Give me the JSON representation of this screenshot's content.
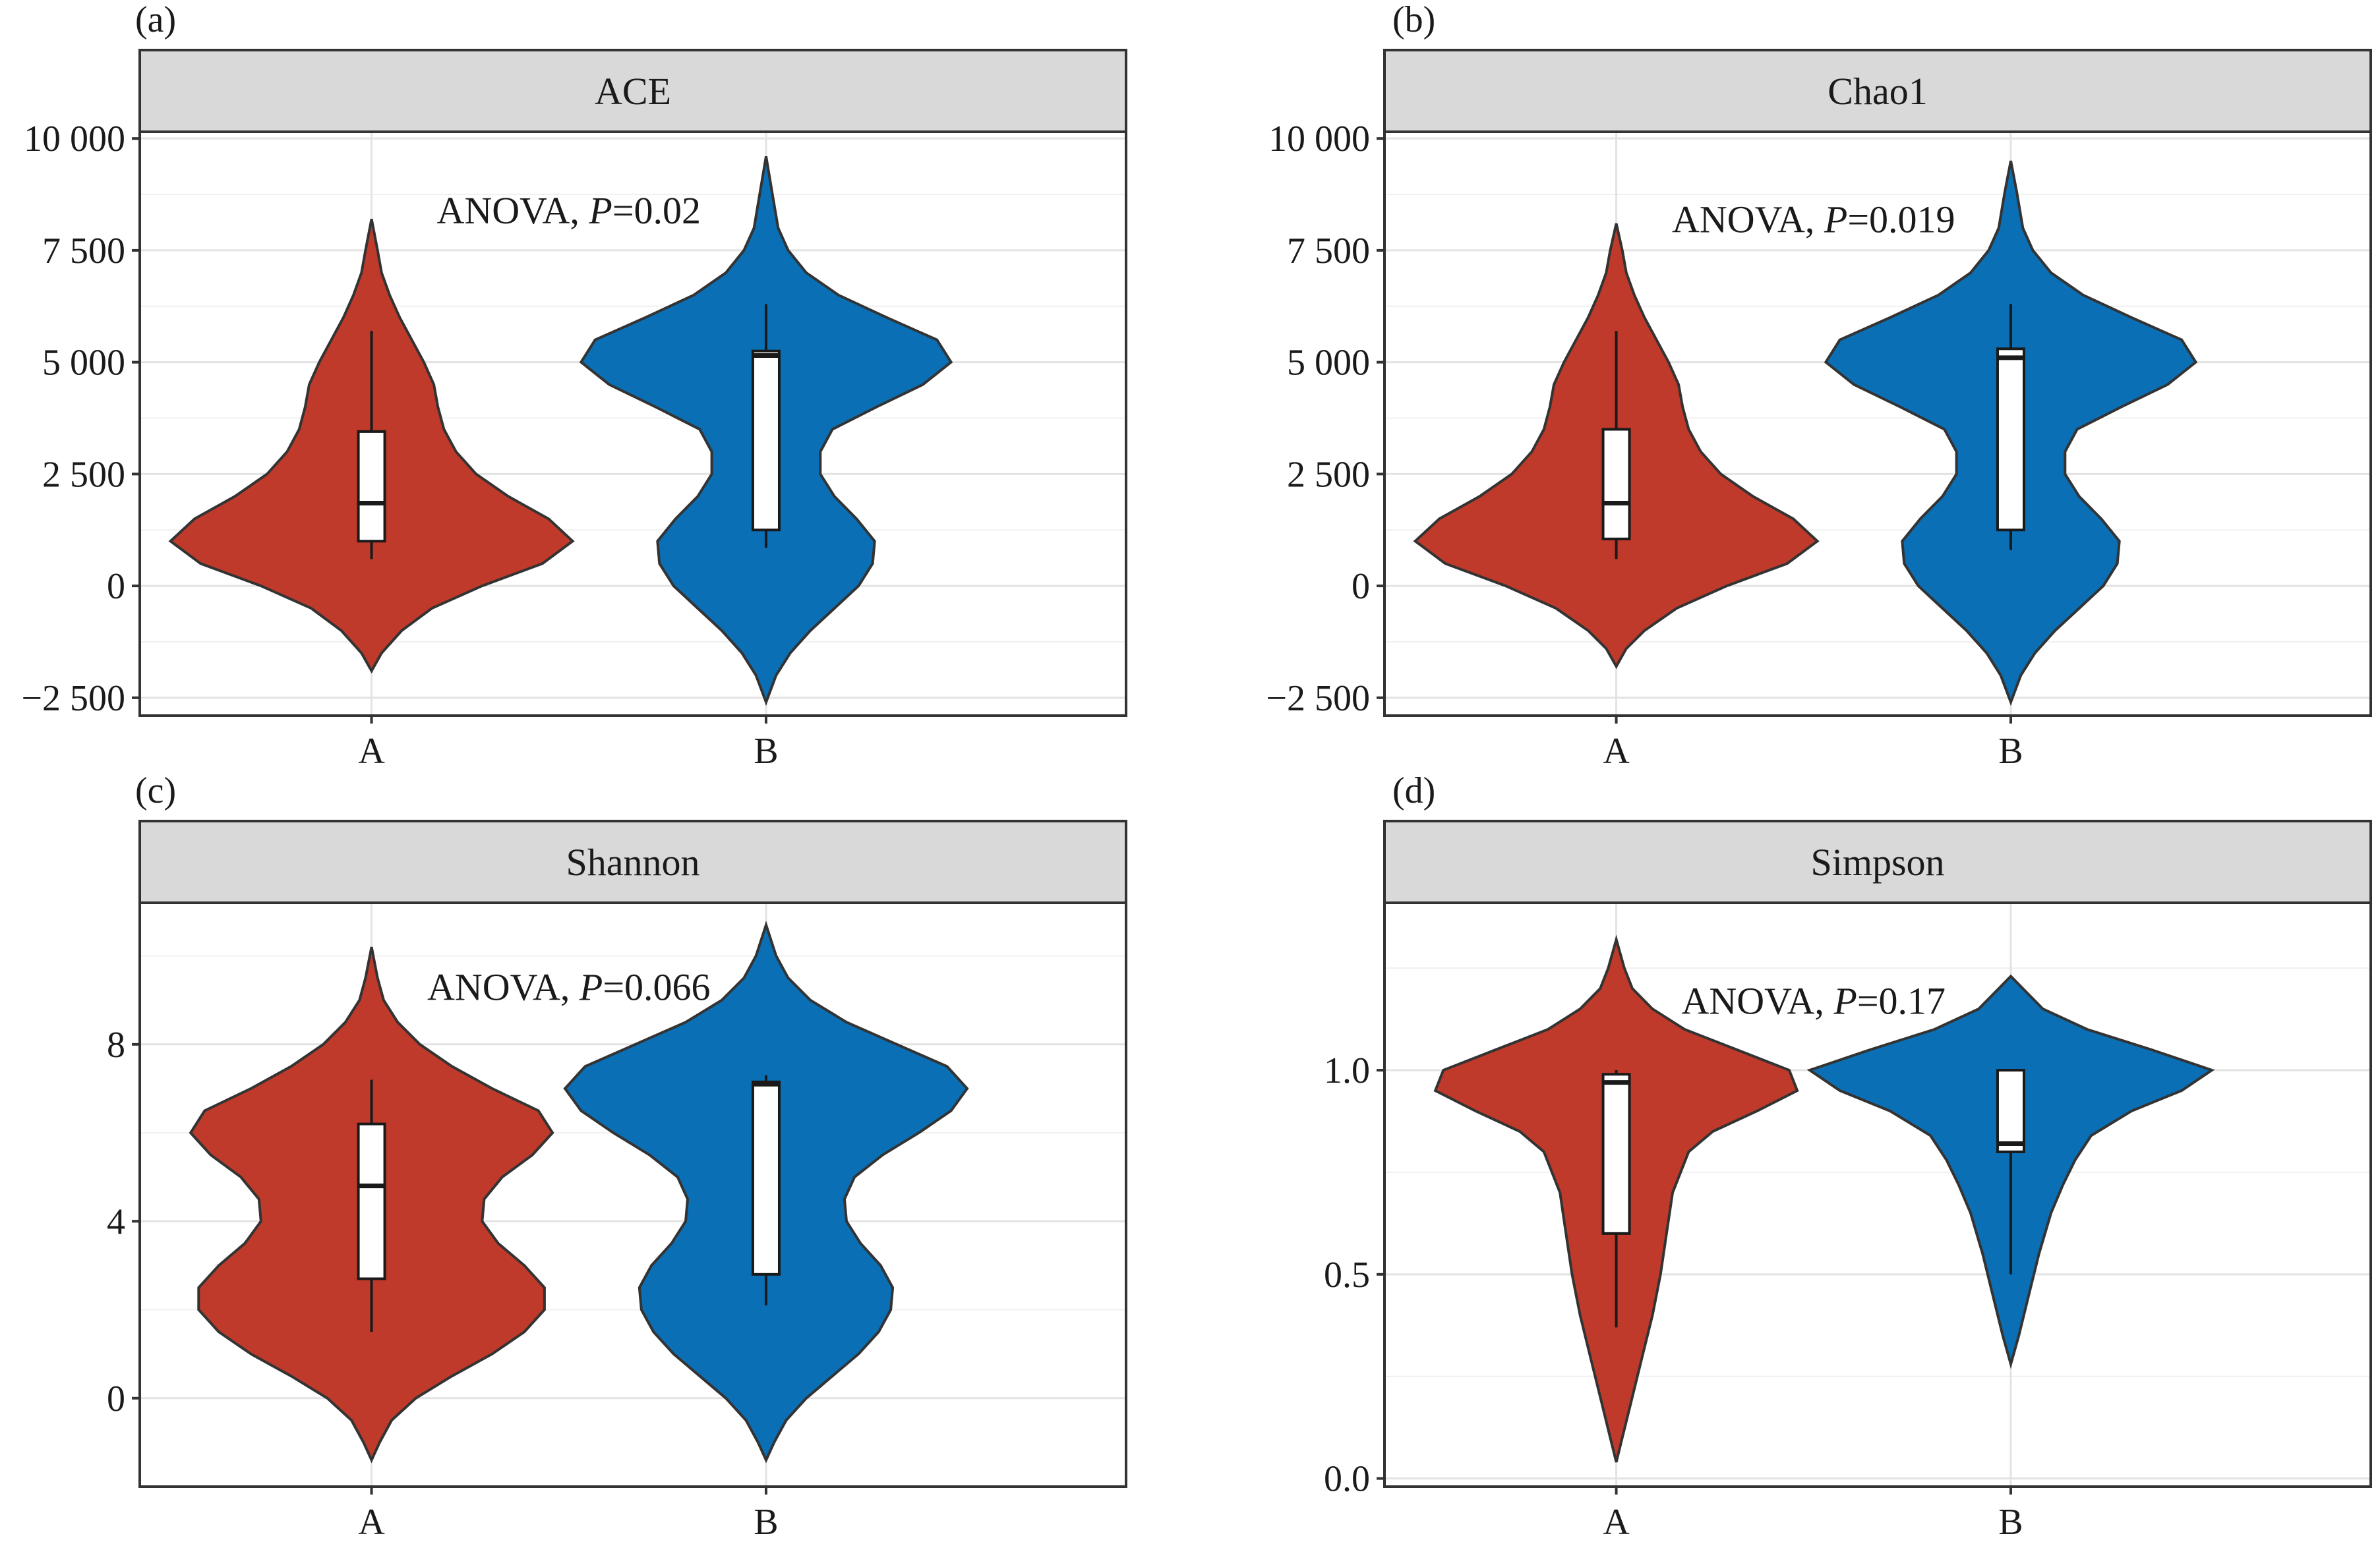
{
  "chart_data": [
    {
      "type": "violin",
      "panel_label": "(a)",
      "title": "ACE",
      "annotation": {
        "prefix": "ANOVA, ",
        "italic": "P",
        "suffix": "=0.02",
        "x": 1.5,
        "y": 8400
      },
      "categories": [
        "A",
        "B"
      ],
      "ylim": [
        -2900,
        10150
      ],
      "yticks": [
        -2500,
        0,
        2500,
        5000,
        7500,
        10000
      ],
      "ytick_labels": [
        "−2 500",
        "0",
        "2 500",
        "5 000",
        "7 500",
        "10 000"
      ],
      "grid": true,
      "colors": [
        "#bf3a2a",
        "#0a6fb5"
      ],
      "violins": [
        {
          "category": "A",
          "color": "#bf3a2a",
          "profile": [
            [
              -1900,
              0.0
            ],
            [
              -1500,
              0.05
            ],
            [
              -1000,
              0.15
            ],
            [
              -500,
              0.3
            ],
            [
              0,
              0.55
            ],
            [
              500,
              0.85
            ],
            [
              1000,
              1.0
            ],
            [
              1500,
              0.88
            ],
            [
              2000,
              0.68
            ],
            [
              2500,
              0.52
            ],
            [
              3000,
              0.42
            ],
            [
              3500,
              0.36
            ],
            [
              4000,
              0.33
            ],
            [
              4500,
              0.31
            ],
            [
              5000,
              0.26
            ],
            [
              5500,
              0.2
            ],
            [
              6000,
              0.14
            ],
            [
              6500,
              0.09
            ],
            [
              7000,
              0.05
            ],
            [
              7500,
              0.03
            ],
            [
              8200,
              0.0
            ]
          ],
          "box": {
            "q1": 1000,
            "median": 1850,
            "q3": 3450,
            "whisker_low": 600,
            "whisker_high": 5700
          }
        },
        {
          "category": "B",
          "color": "#0a6fb5",
          "profile": [
            [
              -2600,
              0.0
            ],
            [
              -2000,
              0.05
            ],
            [
              -1500,
              0.12
            ],
            [
              -1000,
              0.22
            ],
            [
              -500,
              0.34
            ],
            [
              0,
              0.46
            ],
            [
              500,
              0.53
            ],
            [
              1000,
              0.54
            ],
            [
              1500,
              0.45
            ],
            [
              2000,
              0.34
            ],
            [
              2500,
              0.27
            ],
            [
              3000,
              0.27
            ],
            [
              3500,
              0.33
            ],
            [
              4000,
              0.55
            ],
            [
              4500,
              0.78
            ],
            [
              5000,
              0.92
            ],
            [
              5500,
              0.85
            ],
            [
              6000,
              0.6
            ],
            [
              6500,
              0.36
            ],
            [
              7000,
              0.2
            ],
            [
              7500,
              0.11
            ],
            [
              8000,
              0.06
            ],
            [
              8800,
              0.03
            ],
            [
              9600,
              0.0
            ]
          ],
          "box": {
            "q1": 1250,
            "median": 5150,
            "q3": 5250,
            "whisker_low": 850,
            "whisker_high": 6300
          }
        }
      ]
    },
    {
      "type": "violin",
      "panel_label": "(b)",
      "title": "Chao1",
      "annotation": {
        "prefix": "ANOVA, ",
        "italic": "P",
        "suffix": "=0.019",
        "x": 1.5,
        "y": 8200
      },
      "categories": [
        "A",
        "B"
      ],
      "ylim": [
        -2900,
        10150
      ],
      "yticks": [
        -2500,
        0,
        2500,
        5000,
        7500,
        10000
      ],
      "ytick_labels": [
        "−2 500",
        "0",
        "2 500",
        "5 000",
        "7 500",
        "10 000"
      ],
      "grid": true,
      "colors": [
        "#bf3a2a",
        "#0a6fb5"
      ],
      "violins": [
        {
          "category": "A",
          "color": "#bf3a2a",
          "profile": [
            [
              -1800,
              0.0
            ],
            [
              -1400,
              0.05
            ],
            [
              -1000,
              0.14
            ],
            [
              -500,
              0.3
            ],
            [
              0,
              0.55
            ],
            [
              500,
              0.85
            ],
            [
              1000,
              1.0
            ],
            [
              1500,
              0.88
            ],
            [
              2000,
              0.68
            ],
            [
              2500,
              0.52
            ],
            [
              3000,
              0.42
            ],
            [
              3500,
              0.36
            ],
            [
              4000,
              0.33
            ],
            [
              4500,
              0.31
            ],
            [
              5000,
              0.26
            ],
            [
              5500,
              0.2
            ],
            [
              6000,
              0.14
            ],
            [
              6500,
              0.09
            ],
            [
              7000,
              0.05
            ],
            [
              7500,
              0.03
            ],
            [
              8100,
              0.0
            ]
          ],
          "box": {
            "q1": 1050,
            "median": 1850,
            "q3": 3500,
            "whisker_low": 600,
            "whisker_high": 5700
          }
        },
        {
          "category": "B",
          "color": "#0a6fb5",
          "profile": [
            [
              -2600,
              0.0
            ],
            [
              -2000,
              0.05
            ],
            [
              -1500,
              0.12
            ],
            [
              -1000,
              0.22
            ],
            [
              -500,
              0.34
            ],
            [
              0,
              0.46
            ],
            [
              500,
              0.53
            ],
            [
              1000,
              0.54
            ],
            [
              1500,
              0.45
            ],
            [
              2000,
              0.34
            ],
            [
              2500,
              0.27
            ],
            [
              3000,
              0.27
            ],
            [
              3500,
              0.33
            ],
            [
              4000,
              0.55
            ],
            [
              4500,
              0.78
            ],
            [
              5000,
              0.92
            ],
            [
              5500,
              0.85
            ],
            [
              6000,
              0.6
            ],
            [
              6500,
              0.36
            ],
            [
              7000,
              0.2
            ],
            [
              7500,
              0.11
            ],
            [
              8000,
              0.06
            ],
            [
              8800,
              0.03
            ],
            [
              9500,
              0.0
            ]
          ],
          "box": {
            "q1": 1250,
            "median": 5100,
            "q3": 5300,
            "whisker_low": 800,
            "whisker_high": 6300
          }
        }
      ]
    },
    {
      "type": "violin",
      "panel_label": "(c)",
      "title": "Shannon",
      "annotation": {
        "prefix": "ANOVA, ",
        "italic": "P",
        "suffix": "=0.066",
        "x": 1.5,
        "y": 9.3
      },
      "categories": [
        "A",
        "B"
      ],
      "ylim": [
        -2.0,
        11.2
      ],
      "yticks": [
        0,
        4,
        8
      ],
      "ytick_labels": [
        "0",
        "4",
        "8"
      ],
      "grid": true,
      "colors": [
        "#bf3a2a",
        "#0a6fb5"
      ],
      "violins": [
        {
          "category": "A",
          "color": "#bf3a2a",
          "profile": [
            [
              -1.4,
              0.0
            ],
            [
              -1.0,
              0.04
            ],
            [
              -0.5,
              0.1
            ],
            [
              0,
              0.22
            ],
            [
              0.5,
              0.4
            ],
            [
              1.0,
              0.6
            ],
            [
              1.5,
              0.76
            ],
            [
              2.0,
              0.86
            ],
            [
              2.5,
              0.86
            ],
            [
              3.0,
              0.76
            ],
            [
              3.5,
              0.63
            ],
            [
              4.0,
              0.55
            ],
            [
              4.5,
              0.56
            ],
            [
              5.0,
              0.65
            ],
            [
              5.5,
              0.8
            ],
            [
              6.0,
              0.9
            ],
            [
              6.5,
              0.83
            ],
            [
              7.0,
              0.6
            ],
            [
              7.5,
              0.4
            ],
            [
              8.0,
              0.24
            ],
            [
              8.5,
              0.13
            ],
            [
              9.0,
              0.06
            ],
            [
              9.5,
              0.03
            ],
            [
              10.2,
              0.0
            ]
          ],
          "box": {
            "q1": 2.7,
            "median": 4.8,
            "q3": 6.2,
            "whisker_low": 1.5,
            "whisker_high": 7.2
          }
        },
        {
          "category": "B",
          "color": "#0a6fb5",
          "profile": [
            [
              -1.4,
              0.0
            ],
            [
              -1.0,
              0.04
            ],
            [
              -0.5,
              0.1
            ],
            [
              0,
              0.2
            ],
            [
              0.5,
              0.33
            ],
            [
              1.0,
              0.46
            ],
            [
              1.5,
              0.56
            ],
            [
              2.0,
              0.62
            ],
            [
              2.5,
              0.63
            ],
            [
              3.0,
              0.57
            ],
            [
              3.5,
              0.47
            ],
            [
              4.0,
              0.4
            ],
            [
              4.5,
              0.39
            ],
            [
              5.0,
              0.44
            ],
            [
              5.5,
              0.58
            ],
            [
              6.0,
              0.76
            ],
            [
              6.5,
              0.92
            ],
            [
              7.0,
              1.0
            ],
            [
              7.5,
              0.9
            ],
            [
              8.0,
              0.65
            ],
            [
              8.5,
              0.4
            ],
            [
              9.0,
              0.22
            ],
            [
              9.5,
              0.11
            ],
            [
              10.0,
              0.05
            ],
            [
              10.7,
              0.0
            ]
          ],
          "box": {
            "q1": 2.8,
            "median": 7.1,
            "q3": 7.15,
            "whisker_low": 2.1,
            "whisker_high": 7.3
          }
        }
      ]
    },
    {
      "type": "violin",
      "panel_label": "(d)",
      "title": "Simpson",
      "annotation": {
        "prefix": "ANOVA, ",
        "italic": "P",
        "suffix": "=0.17",
        "x": 1.5,
        "y": 1.17
      },
      "categories": [
        "A",
        "B"
      ],
      "ylim": [
        -0.02,
        1.41
      ],
      "yticks": [
        0.0,
        0.5,
        1.0
      ],
      "ytick_labels": [
        "0.0",
        "0.5",
        "1.0"
      ],
      "grid": true,
      "colors": [
        "#bf3a2a",
        "#0a6fb5"
      ],
      "violins": [
        {
          "category": "A",
          "color": "#bf3a2a",
          "profile": [
            [
              0.04,
              0.0
            ],
            [
              0.1,
              0.03
            ],
            [
              0.2,
              0.08
            ],
            [
              0.3,
              0.13
            ],
            [
              0.4,
              0.18
            ],
            [
              0.5,
              0.22
            ],
            [
              0.6,
              0.25
            ],
            [
              0.7,
              0.28
            ],
            [
              0.8,
              0.36
            ],
            [
              0.85,
              0.48
            ],
            [
              0.9,
              0.7
            ],
            [
              0.95,
              0.9
            ],
            [
              1.0,
              0.86
            ],
            [
              1.05,
              0.6
            ],
            [
              1.1,
              0.34
            ],
            [
              1.15,
              0.18
            ],
            [
              1.2,
              0.08
            ],
            [
              1.25,
              0.04
            ],
            [
              1.32,
              0.0
            ]
          ],
          "box": {
            "q1": 0.6,
            "median": 0.97,
            "q3": 0.99,
            "whisker_low": 0.37,
            "whisker_high": 1.0
          }
        },
        {
          "category": "B",
          "color": "#0a6fb5",
          "profile": [
            [
              0.28,
              0.0
            ],
            [
              0.35,
              0.04
            ],
            [
              0.45,
              0.09
            ],
            [
              0.55,
              0.14
            ],
            [
              0.65,
              0.2
            ],
            [
              0.72,
              0.26
            ],
            [
              0.78,
              0.32
            ],
            [
              0.84,
              0.4
            ],
            [
              0.9,
              0.6
            ],
            [
              0.95,
              0.85
            ],
            [
              1.0,
              1.0
            ],
            [
              1.05,
              0.7
            ],
            [
              1.1,
              0.38
            ],
            [
              1.15,
              0.16
            ],
            [
              1.2,
              0.06
            ],
            [
              1.23,
              0.0
            ]
          ],
          "box": {
            "q1": 0.8,
            "median": 0.82,
            "q3": 1.0,
            "whisker_low": 0.5,
            "whisker_high": 1.0
          }
        }
      ]
    }
  ]
}
